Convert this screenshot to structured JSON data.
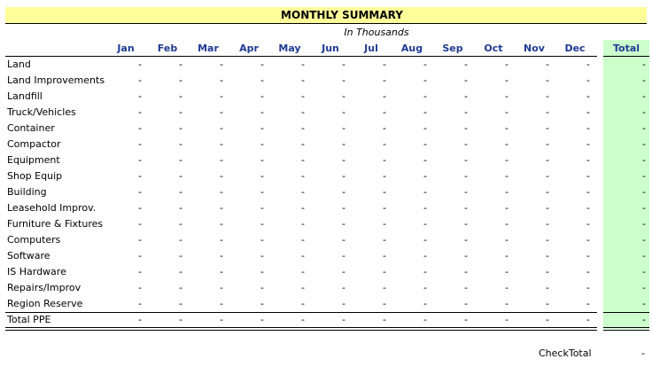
{
  "sheet": {
    "title": "MONTHLY SUMMARY",
    "units": "In Thousands",
    "months": [
      "Jan",
      "Feb",
      "Mar",
      "Apr",
      "May",
      "Jun",
      "Jul",
      "Aug",
      "Sep",
      "Oct",
      "Nov",
      "Dec"
    ],
    "total_label": "Total",
    "empty_value": "-",
    "rows": [
      "Land",
      "Land Improvements",
      "Landfill",
      "Truck/Vehicles",
      "Container",
      "Compactor",
      "Equipment",
      "Shop Equip",
      "Building",
      "Leasehold Improv.",
      "Furniture & Fixtures",
      "Computers",
      "Software",
      "IS Hardware",
      "Repairs/Improv",
      "Region Reserve"
    ],
    "summary_label": "Total PPE",
    "check_label": "CheckTotal",
    "check_value": "-"
  },
  "colors": {
    "title_bg": "#ffff99",
    "total_bg": "#ccffcc",
    "header_text": "#1f3a93"
  }
}
